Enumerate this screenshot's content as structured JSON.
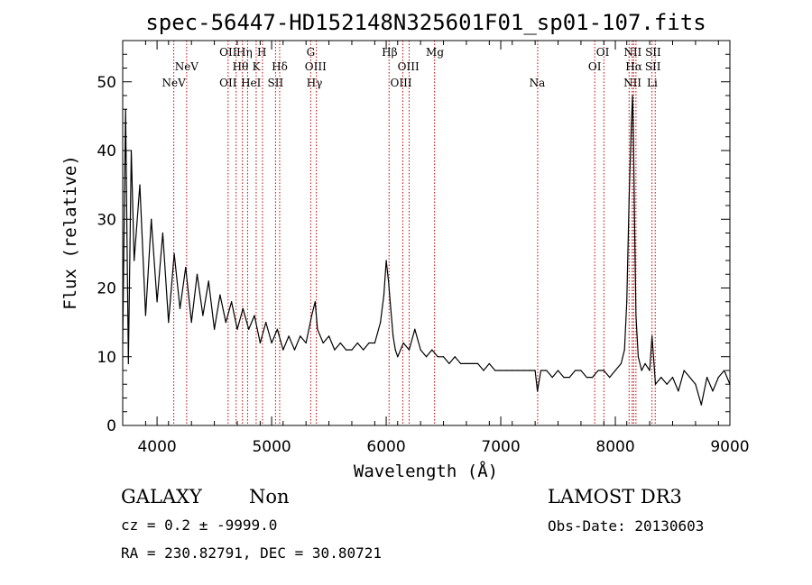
{
  "chart_data": {
    "type": "line",
    "title": "spec-56447-HD152148N325601F01_sp01-107.fits",
    "xlabel": "Wavelength (Å)",
    "ylabel": "Flux (relative)",
    "xlim": [
      3700,
      9000
    ],
    "ylim": [
      0,
      56
    ],
    "xticks": [
      4000,
      5000,
      6000,
      7000,
      8000,
      9000
    ],
    "yticks": [
      0,
      10,
      20,
      30,
      40,
      50
    ],
    "series": [
      {
        "name": "flux",
        "x": [
          3700,
          3725,
          3750,
          3775,
          3800,
          3850,
          3900,
          3950,
          4000,
          4050,
          4100,
          4150,
          4200,
          4250,
          4300,
          4350,
          4400,
          4450,
          4500,
          4550,
          4600,
          4650,
          4700,
          4750,
          4800,
          4850,
          4900,
          4950,
          5000,
          5050,
          5100,
          5150,
          5200,
          5250,
          5300,
          5350,
          5380,
          5400,
          5450,
          5500,
          5550,
          5600,
          5650,
          5700,
          5750,
          5800,
          5850,
          5900,
          5950,
          5980,
          6000,
          6020,
          6040,
          6060,
          6080,
          6100,
          6150,
          6200,
          6250,
          6300,
          6350,
          6400,
          6450,
          6500,
          6550,
          6600,
          6650,
          6700,
          6750,
          6800,
          6850,
          6900,
          6950,
          7000,
          7050,
          7100,
          7150,
          7200,
          7250,
          7300,
          7320,
          7350,
          7400,
          7450,
          7500,
          7550,
          7600,
          7650,
          7700,
          7750,
          7800,
          7850,
          7900,
          7950,
          8000,
          8050,
          8080,
          8100,
          8120,
          8140,
          8150,
          8160,
          8170,
          8180,
          8200,
          8230,
          8260,
          8300,
          8320,
          8350,
          8400,
          8450,
          8500,
          8550,
          8600,
          8650,
          8700,
          8750,
          8800,
          8850,
          8900,
          8950,
          9000
        ],
        "values": [
          12,
          46,
          9,
          40,
          24,
          35,
          16,
          30,
          18,
          28,
          15,
          25,
          17,
          23,
          15,
          22,
          16,
          21,
          14,
          19,
          15,
          18,
          14,
          17,
          14,
          16,
          12,
          15,
          12,
          14,
          11,
          13,
          11,
          13,
          12,
          16,
          18,
          14,
          12,
          13,
          11,
          12,
          11,
          11,
          12,
          11,
          12,
          12,
          15,
          19,
          24,
          21,
          17,
          13,
          11,
          10,
          12,
          11,
          14,
          11,
          10,
          11,
          10,
          10,
          9,
          10,
          9,
          9,
          9,
          9,
          8,
          9,
          8,
          8,
          8,
          8,
          8,
          8,
          8,
          8,
          5,
          8,
          8,
          7,
          8,
          7,
          7,
          8,
          8,
          7,
          7,
          8,
          8,
          7,
          8,
          9,
          11,
          18,
          33,
          44,
          48,
          40,
          27,
          16,
          10,
          8,
          9,
          8,
          13,
          6,
          7,
          6,
          7,
          5,
          8,
          7,
          6,
          3,
          7,
          5,
          7,
          8,
          6
        ]
      }
    ],
    "line_labels": [
      {
        "text": "NeV",
        "wavelength": 4146,
        "row": 3
      },
      {
        "text": "NeV",
        "wavelength": 4258,
        "row": 2
      },
      {
        "text": "OII",
        "wavelength": 4620,
        "row": 1
      },
      {
        "text": "OII",
        "wavelength": 4620,
        "row": 3
      },
      {
        "text": "Hθ",
        "wavelength": 4728,
        "row": 2
      },
      {
        "text": "Hη",
        "wavelength": 4762,
        "row": 1
      },
      {
        "text": "HeI",
        "wavelength": 4820,
        "row": 3
      },
      {
        "text": "K",
        "wavelength": 4866,
        "row": 2
      },
      {
        "text": "H",
        "wavelength": 4915,
        "row": 1
      },
      {
        "text": "SII",
        "wavelength": 5034,
        "row": 3
      },
      {
        "text": "Hδ",
        "wavelength": 5070,
        "row": 2
      },
      {
        "text": "G",
        "wavelength": 5341,
        "row": 1
      },
      {
        "text": "OIII",
        "wavelength": 5384,
        "row": 2
      },
      {
        "text": "Hγ",
        "wavelength": 5374,
        "row": 3
      },
      {
        "text": "Hβ",
        "wavelength": 6030,
        "row": 1
      },
      {
        "text": "OIII",
        "wavelength": 6194,
        "row": 2
      },
      {
        "text": "OIII",
        "wavelength": 6130,
        "row": 3
      },
      {
        "text": "Mg",
        "wavelength": 6425,
        "row": 1
      },
      {
        "text": "Na",
        "wavelength": 7318,
        "row": 3
      },
      {
        "text": "OI",
        "wavelength": 7890,
        "row": 1
      },
      {
        "text": "OI",
        "wavelength": 7820,
        "row": 2
      },
      {
        "text": "NII",
        "wavelength": 8152,
        "row": 1
      },
      {
        "text": "Hα",
        "wavelength": 8162,
        "row": 2
      },
      {
        "text": "NII",
        "wavelength": 8150,
        "row": 3
      },
      {
        "text": "SII",
        "wavelength": 8330,
        "row": 1
      },
      {
        "text": "SII",
        "wavelength": 8328,
        "row": 2
      },
      {
        "text": "Li",
        "wavelength": 8322,
        "row": 3
      }
    ],
    "line_markers": [
      4146,
      4258,
      4620,
      4690,
      4745,
      4790,
      4865,
      4920,
      5034,
      5070,
      5341,
      5390,
      6025,
      6145,
      6200,
      6422,
      7322,
      7820,
      7900,
      8120,
      8147,
      8160,
      8180,
      8320,
      8348
    ]
  },
  "info": {
    "class": "GALAXY",
    "subclass": "Non",
    "cz": "cz = 0.2 ± -9999.0",
    "coords": "RA = 230.82791, DEC =  30.80721",
    "survey": "LAMOST DR3",
    "obs_date": "Obs-Date: 20130603"
  },
  "colors": {
    "marker": "#c00000",
    "line": "#000000"
  }
}
